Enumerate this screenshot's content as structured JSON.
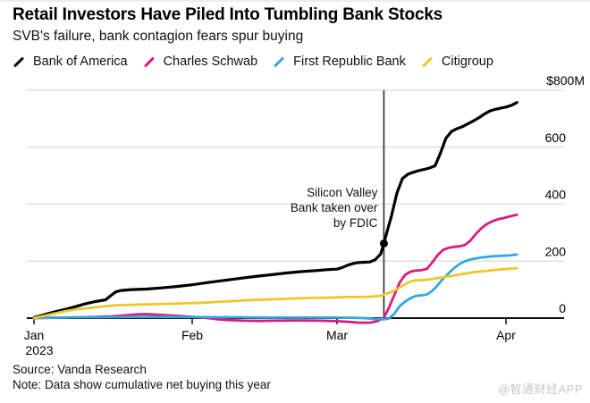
{
  "header": {
    "title": "Retail Investors Have Piled Into Tumbling Bank Stocks",
    "subtitle": "SVB's failure, bank contagion fears spur buying"
  },
  "legend": {
    "position": "top",
    "items": [
      {
        "label": "Bank of America",
        "color": "#000000"
      },
      {
        "label": "Charles Schwab",
        "color": "#db1a7f"
      },
      {
        "label": "First Republic Bank",
        "color": "#32a8e0"
      },
      {
        "label": "Citigroup",
        "color": "#eec72c"
      }
    ]
  },
  "chart_data": {
    "type": "line",
    "unit": "USD millions, cumulative net buying",
    "ylim": [
      0,
      800
    ],
    "grid": "horizontal",
    "legend_position": "top",
    "y_ticks": [
      {
        "label": "$800M",
        "value": 800
      },
      {
        "label": "600",
        "value": 600
      },
      {
        "label": "400",
        "value": 400
      },
      {
        "label": "200",
        "value": 200
      },
      {
        "label": "0",
        "value": 0
      }
    ],
    "x_ticks": [
      {
        "label": "Jan",
        "sublabel": "2023",
        "day": 1
      },
      {
        "label": "Feb",
        "day": 32
      },
      {
        "label": "Mar",
        "day": 60
      },
      {
        "label": "Apr",
        "day": 91
      }
    ],
    "annotation": {
      "lines": [
        "Silicon Valley",
        "Bank taken over",
        "by FDIC"
      ],
      "day": 68.6,
      "marker_series": "Bank of America",
      "marker_value": 262
    },
    "series": [
      {
        "name": "Bank of America",
        "color": "#000000",
        "width": 3.2,
        "points": [
          [
            1,
            2
          ],
          [
            3,
            12
          ],
          [
            5,
            22
          ],
          [
            7,
            30
          ],
          [
            9,
            40
          ],
          [
            11,
            50
          ],
          [
            13,
            58
          ],
          [
            15,
            64
          ],
          [
            16,
            78
          ],
          [
            17,
            92
          ],
          [
            18,
            97
          ],
          [
            20,
            100
          ],
          [
            23,
            102
          ],
          [
            26,
            106
          ],
          [
            29,
            111
          ],
          [
            32,
            117
          ],
          [
            35,
            125
          ],
          [
            38,
            132
          ],
          [
            41,
            139
          ],
          [
            44,
            146
          ],
          [
            47,
            152
          ],
          [
            50,
            158
          ],
          [
            53,
            163
          ],
          [
            56,
            167
          ],
          [
            58,
            170
          ],
          [
            60,
            172
          ],
          [
            61,
            178
          ],
          [
            62,
            186
          ],
          [
            63,
            192
          ],
          [
            64,
            195
          ],
          [
            65,
            196
          ],
          [
            66,
            197
          ],
          [
            67,
            205
          ],
          [
            68,
            225
          ],
          [
            68.6,
            262
          ],
          [
            69.2,
            305
          ],
          [
            70,
            360
          ],
          [
            71,
            440
          ],
          [
            72,
            490
          ],
          [
            73,
            505
          ],
          [
            74,
            512
          ],
          [
            75,
            518
          ],
          [
            76,
            522
          ],
          [
            77,
            527
          ],
          [
            78,
            535
          ],
          [
            79,
            580
          ],
          [
            80,
            632
          ],
          [
            81,
            655
          ],
          [
            82,
            665
          ],
          [
            83,
            672
          ],
          [
            84,
            682
          ],
          [
            85,
            692
          ],
          [
            86,
            703
          ],
          [
            87,
            716
          ],
          [
            88,
            727
          ],
          [
            89,
            733
          ],
          [
            90,
            737
          ],
          [
            91,
            741
          ],
          [
            92,
            747
          ],
          [
            93,
            757
          ]
        ]
      },
      {
        "name": "Charles Schwab",
        "color": "#db1a7f",
        "width": 2.8,
        "points": [
          [
            1,
            0
          ],
          [
            4,
            1
          ],
          [
            7,
            2
          ],
          [
            10,
            3
          ],
          [
            13,
            4
          ],
          [
            16,
            6
          ],
          [
            19,
            10
          ],
          [
            21,
            13
          ],
          [
            23,
            14
          ],
          [
            25,
            12
          ],
          [
            27,
            10
          ],
          [
            29,
            8
          ],
          [
            31,
            6
          ],
          [
            33,
            3
          ],
          [
            35,
            0
          ],
          [
            37,
            -4
          ],
          [
            39,
            -7
          ],
          [
            42,
            -9
          ],
          [
            45,
            -10
          ],
          [
            48,
            -9
          ],
          [
            51,
            -8
          ],
          [
            54,
            -8
          ],
          [
            57,
            -9
          ],
          [
            60,
            -11
          ],
          [
            62,
            -13
          ],
          [
            64,
            -16
          ],
          [
            66,
            -16
          ],
          [
            67.5,
            -10
          ],
          [
            68.6,
            2
          ],
          [
            69.5,
            35
          ],
          [
            70.5,
            80
          ],
          [
            71.5,
            125
          ],
          [
            72.5,
            152
          ],
          [
            73.5,
            163
          ],
          [
            74.5,
            167
          ],
          [
            75.5,
            168
          ],
          [
            76.5,
            173
          ],
          [
            77.5,
            196
          ],
          [
            78.5,
            222
          ],
          [
            79.5,
            240
          ],
          [
            80.5,
            247
          ],
          [
            81.5,
            250
          ],
          [
            82.5,
            252
          ],
          [
            83.5,
            257
          ],
          [
            84.5,
            273
          ],
          [
            85.5,
            296
          ],
          [
            86.5,
            316
          ],
          [
            87.5,
            330
          ],
          [
            88.5,
            340
          ],
          [
            89.5,
            347
          ],
          [
            90.5,
            351
          ],
          [
            91.5,
            356
          ],
          [
            93,
            363
          ]
        ]
      },
      {
        "name": "First Republic Bank",
        "color": "#32a8e0",
        "width": 2.8,
        "points": [
          [
            1,
            0
          ],
          [
            5,
            2
          ],
          [
            10,
            3
          ],
          [
            15,
            3
          ],
          [
            20,
            4
          ],
          [
            25,
            4
          ],
          [
            31,
            4
          ],
          [
            36,
            3
          ],
          [
            41,
            3
          ],
          [
            46,
            2
          ],
          [
            51,
            2
          ],
          [
            56,
            2
          ],
          [
            60,
            2
          ],
          [
            63,
            1
          ],
          [
            65,
            0
          ],
          [
            67,
            -3
          ],
          [
            68.6,
            -4
          ],
          [
            69.5,
            -2
          ],
          [
            70.5,
            15
          ],
          [
            71.5,
            42
          ],
          [
            72.5,
            58
          ],
          [
            73.5,
            70
          ],
          [
            74.5,
            78
          ],
          [
            75.5,
            80
          ],
          [
            76.5,
            83
          ],
          [
            77.5,
            96
          ],
          [
            78.5,
            116
          ],
          [
            79.5,
            139
          ],
          [
            80.5,
            158
          ],
          [
            81.5,
            176
          ],
          [
            82.5,
            190
          ],
          [
            83.5,
            200
          ],
          [
            84.5,
            206
          ],
          [
            85.5,
            210
          ],
          [
            86.5,
            213
          ],
          [
            87.5,
            215
          ],
          [
            88.5,
            217
          ],
          [
            89.5,
            218
          ],
          [
            90.5,
            219
          ],
          [
            91.5,
            220
          ],
          [
            93,
            223
          ]
        ]
      },
      {
        "name": "Citigroup",
        "color": "#eec72c",
        "width": 2.8,
        "points": [
          [
            1,
            0
          ],
          [
            3,
            8
          ],
          [
            5,
            16
          ],
          [
            7,
            24
          ],
          [
            9,
            30
          ],
          [
            11,
            34
          ],
          [
            13,
            38
          ],
          [
            15,
            42
          ],
          [
            17,
            45
          ],
          [
            19,
            46
          ],
          [
            21,
            47
          ],
          [
            23,
            48
          ],
          [
            25,
            49
          ],
          [
            27,
            50
          ],
          [
            29,
            51
          ],
          [
            31,
            52
          ],
          [
            34,
            54
          ],
          [
            37,
            57
          ],
          [
            40,
            60
          ],
          [
            43,
            63
          ],
          [
            46,
            65
          ],
          [
            49,
            67
          ],
          [
            52,
            69
          ],
          [
            55,
            71
          ],
          [
            58,
            72
          ],
          [
            60,
            73
          ],
          [
            62,
            74
          ],
          [
            64,
            74
          ],
          [
            66,
            75
          ],
          [
            68,
            78
          ],
          [
            70,
            92
          ],
          [
            71,
            102
          ],
          [
            72,
            114
          ],
          [
            73,
            125
          ],
          [
            74,
            131
          ],
          [
            75,
            133
          ],
          [
            76,
            134
          ],
          [
            77,
            136
          ],
          [
            78,
            139
          ],
          [
            79,
            142
          ],
          [
            80,
            145
          ],
          [
            81,
            148
          ],
          [
            82,
            152
          ],
          [
            83,
            155
          ],
          [
            84,
            158
          ],
          [
            85,
            161
          ],
          [
            86,
            163
          ],
          [
            87,
            165
          ],
          [
            88,
            167
          ],
          [
            89,
            169
          ],
          [
            90,
            171
          ],
          [
            91,
            172
          ],
          [
            92,
            174
          ],
          [
            93,
            175
          ]
        ]
      }
    ]
  },
  "footer": {
    "source": "Source: Vanda Research",
    "note": "Note: Data show cumulative net buying this year"
  },
  "watermark": "@智通财经APP"
}
